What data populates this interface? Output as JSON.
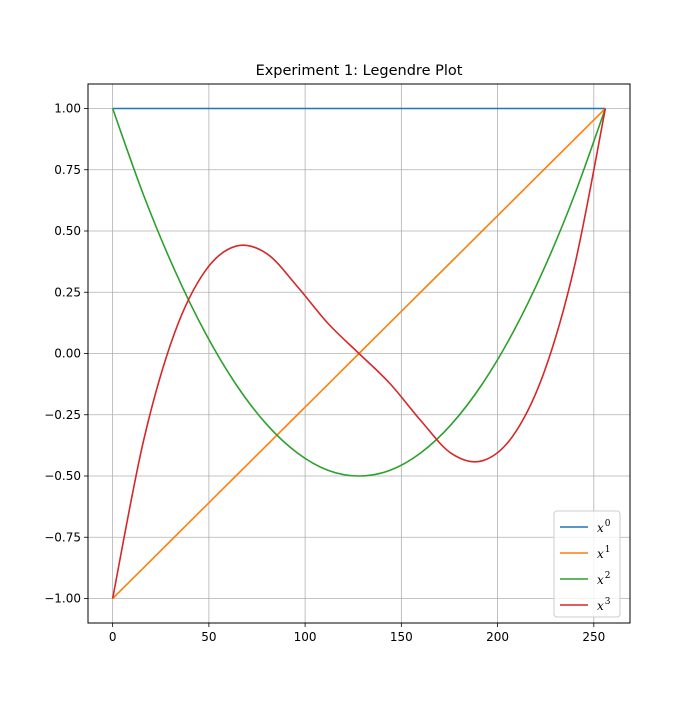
{
  "chart_data": {
    "type": "line",
    "title": "Experiment 1: Legendre Plot",
    "xlabel": "",
    "ylabel": "",
    "xlim": [
      -12.8,
      268.8
    ],
    "ylim": [
      -1.1,
      1.1
    ],
    "x_ticks": [
      0,
      50,
      100,
      150,
      200,
      250
    ],
    "x_tick_labels": [
      "0",
      "50",
      "100",
      "150",
      "200",
      "250"
    ],
    "y_ticks": [
      1.0,
      0.75,
      0.5,
      0.25,
      0.0,
      -0.25,
      -0.5,
      -0.75,
      -1.0
    ],
    "y_tick_labels": [
      "1.00",
      "0.75",
      "0.50",
      "0.25",
      "0.00",
      "−0.25",
      "−0.50",
      "−0.75",
      "−1.00"
    ],
    "grid": true,
    "legend_position": "bottom-right",
    "x": [
      0,
      16,
      32,
      48,
      64,
      80,
      96,
      112,
      128,
      144,
      160,
      176,
      192,
      208,
      224,
      240,
      256
    ],
    "series": [
      {
        "name": "x^0",
        "label_base": "x",
        "label_exp": "0",
        "color": "#1f77b4",
        "values": [
          1.0,
          1.0,
          1.0,
          1.0,
          1.0,
          1.0,
          1.0,
          1.0,
          1.0,
          1.0,
          1.0,
          1.0,
          1.0,
          1.0,
          1.0,
          1.0,
          1.0
        ]
      },
      {
        "name": "x^1",
        "label_base": "x",
        "label_exp": "1",
        "color": "#ff7f0e",
        "values": [
          -1.0,
          -0.875,
          -0.75,
          -0.625,
          -0.5,
          -0.375,
          -0.25,
          -0.125,
          0.0,
          0.125,
          0.25,
          0.375,
          0.5,
          0.625,
          0.75,
          0.875,
          1.0
        ]
      },
      {
        "name": "x^2",
        "label_base": "x",
        "label_exp": "2",
        "color": "#2ca02c",
        "values": [
          1.0,
          0.648,
          0.344,
          0.086,
          -0.125,
          -0.289,
          -0.406,
          -0.477,
          -0.5,
          -0.477,
          -0.406,
          -0.289,
          -0.125,
          0.086,
          0.344,
          0.648,
          1.0
        ]
      },
      {
        "name": "x^3",
        "label_base": "x",
        "label_exp": "3",
        "color": "#d62728",
        "values": [
          -1.0,
          -0.358,
          0.08,
          0.336,
          0.438,
          0.408,
          0.273,
          0.122,
          0.0,
          -0.122,
          -0.273,
          -0.408,
          -0.438,
          -0.336,
          -0.08,
          0.358,
          1.0
        ]
      }
    ]
  }
}
